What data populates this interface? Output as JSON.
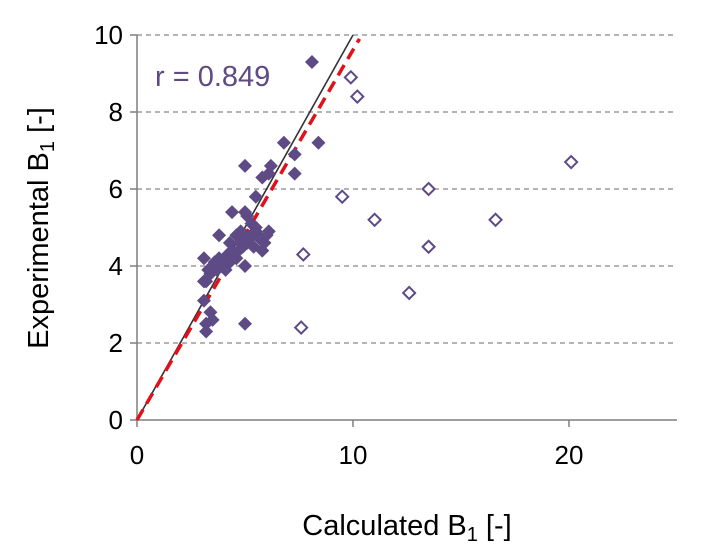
{
  "chart_data": {
    "type": "scatter",
    "xlabel": "Calculated B",
    "xlabel_sub": "1",
    "xlabel_suffix": " [-]",
    "ylabel": "Experimental B",
    "ylabel_sub": "1",
    "ylabel_suffix": " [-]",
    "xlim": [
      0,
      25
    ],
    "ylim": [
      0,
      10
    ],
    "xticks": [
      0,
      10,
      20
    ],
    "yticks": [
      0,
      2,
      4,
      6,
      8,
      10
    ],
    "grid": "horizontal dashed",
    "annotation": "r = 0.849",
    "colors": {
      "marker": "#5e4a85",
      "identity_line": "#333333",
      "fit_line": "#e0111a",
      "grid": "#888888"
    },
    "series": [
      {
        "name": "filled",
        "marker": "diamond-filled",
        "points": [
          [
            3.1,
            4.2
          ],
          [
            3.2,
            3.6
          ],
          [
            3.3,
            3.9
          ],
          [
            3.4,
            3.8
          ],
          [
            3.5,
            4.0
          ],
          [
            3.6,
            4.1
          ],
          [
            3.7,
            3.9
          ],
          [
            3.8,
            4.2
          ],
          [
            3.9,
            4.0
          ],
          [
            4.0,
            4.1
          ],
          [
            4.1,
            3.9
          ],
          [
            4.2,
            4.3
          ],
          [
            4.3,
            4.1
          ],
          [
            4.4,
            4.4
          ],
          [
            4.5,
            4.3
          ],
          [
            4.6,
            4.2
          ],
          [
            4.7,
            4.4
          ],
          [
            4.8,
            4.6
          ],
          [
            4.9,
            4.5
          ],
          [
            5.0,
            4.0
          ],
          [
            5.1,
            4.6
          ],
          [
            5.2,
            4.7
          ],
          [
            5.3,
            4.8
          ],
          [
            5.4,
            4.5
          ],
          [
            5.5,
            4.9
          ],
          [
            5.6,
            4.8
          ],
          [
            5.7,
            4.7
          ],
          [
            5.8,
            4.4
          ],
          [
            5.9,
            4.6
          ],
          [
            6.0,
            4.8
          ],
          [
            6.1,
            4.9
          ],
          [
            5.0,
            4.8
          ],
          [
            4.8,
            4.9
          ],
          [
            5.1,
            5.3
          ],
          [
            5.3,
            5.1
          ],
          [
            5.5,
            5.0
          ],
          [
            3.8,
            4.8
          ],
          [
            4.4,
            5.4
          ],
          [
            5.0,
            5.4
          ],
          [
            5.5,
            5.8
          ],
          [
            4.3,
            4.6
          ],
          [
            4.6,
            4.8
          ],
          [
            3.1,
            3.1
          ],
          [
            3.2,
            2.5
          ],
          [
            3.2,
            2.3
          ],
          [
            3.4,
            2.8
          ],
          [
            3.5,
            2.6
          ],
          [
            3.1,
            3.6
          ],
          [
            5.0,
            2.5
          ],
          [
            5.0,
            6.6
          ],
          [
            5.8,
            6.3
          ],
          [
            6.1,
            6.4
          ],
          [
            6.2,
            6.6
          ],
          [
            6.8,
            7.2
          ],
          [
            7.3,
            6.9
          ],
          [
            7.3,
            6.4
          ],
          [
            8.4,
            7.2
          ],
          [
            8.1,
            9.3
          ]
        ]
      },
      {
        "name": "open",
        "marker": "diamond-open",
        "points": [
          [
            9.9,
            8.9
          ],
          [
            10.2,
            8.4
          ],
          [
            9.5,
            5.8
          ],
          [
            11.0,
            5.2
          ],
          [
            7.7,
            4.3
          ],
          [
            7.6,
            2.4
          ],
          [
            12.6,
            3.3
          ],
          [
            13.5,
            6.0
          ],
          [
            13.5,
            4.5
          ],
          [
            16.6,
            5.2
          ],
          [
            20.1,
            6.7
          ]
        ]
      }
    ],
    "lines": [
      {
        "name": "identity",
        "style": "solid",
        "x": [
          0,
          10
        ],
        "y": [
          0,
          10
        ]
      },
      {
        "name": "fit",
        "style": "dashed",
        "x": [
          0,
          10.3
        ],
        "y": [
          0,
          9.9
        ]
      }
    ]
  }
}
